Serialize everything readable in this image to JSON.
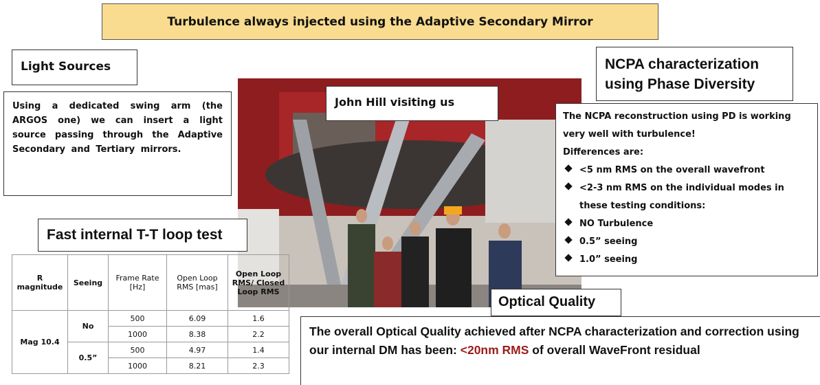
{
  "banner": "Turbulence always injected using the Adaptive Secondary Mirror",
  "light_sources": {
    "title": "Light Sources",
    "text": "Using a dedicated swing arm (the ARGOS one) we can insert a light source passing through the Adaptive Secondary and Tertiary mirrors."
  },
  "photo_caption": "John Hill visiting us",
  "ncpa": {
    "title": "NCPA characterization using Phase Diversity",
    "intro": "The NCPA reconstruction using PD is working very well with turbulence!",
    "differences": "Differences are:",
    "bullets": [
      "<5 nm RMS on the overall wavefront",
      "<2-3 nm RMS on the individual modes in these testing conditions:",
      "NO Turbulence",
      "0.5” seeing",
      "1.0” seeing"
    ]
  },
  "tt_test": {
    "title": "Fast internal T-T loop test",
    "table": {
      "header": [
        "R magnitude",
        "Seeing",
        "Frame Rate [Hz]",
        "Open Loop RMS [mas]",
        "Open Loop RMS/ Closed Loop RMS"
      ],
      "magnitude": "Mag 10.4",
      "groups": [
        {
          "seeing": "No",
          "rows": [
            [
              500,
              6.09,
              1.6
            ],
            [
              1000,
              8.38,
              2.2
            ]
          ]
        },
        {
          "seeing": "0.5”",
          "rows": [
            [
              500,
              4.97,
              1.4
            ],
            [
              1000,
              8.21,
              2.3
            ]
          ]
        }
      ]
    }
  },
  "optical_quality": {
    "title": "Optical Quality",
    "text_before": "The overall Optical Quality achieved after NCPA characterization and correction using our internal DM has been: ",
    "highlight": "<20nm RMS",
    "text_after": " of overall WaveFront residual"
  }
}
